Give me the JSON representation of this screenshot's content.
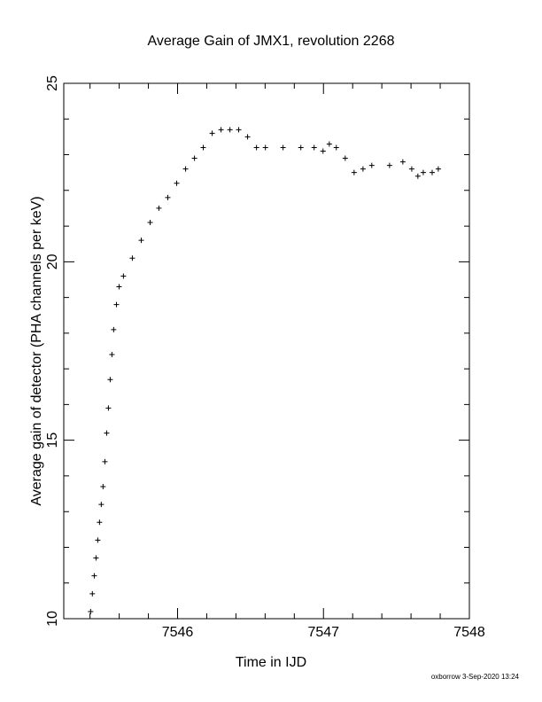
{
  "chart_data": {
    "type": "scatter",
    "title": "Average Gain of JMX1, revolution 2268",
    "xlabel": "Time in IJD",
    "ylabel": "Average gain of detector (PHA channels per keV)",
    "footer": "oxborrow 3-Sep-2020 13:24",
    "color": "#000000",
    "marker": "plus",
    "xlim": [
      7545.22,
      7548
    ],
    "ylim": [
      10,
      25
    ],
    "xticks": [
      7546,
      7547,
      7548
    ],
    "yticks": [
      10,
      15,
      20,
      25
    ],
    "xminorticks": [
      7545.4,
      7545.6,
      7545.8,
      7546.2,
      7546.4,
      7546.6,
      7546.8,
      7547.2,
      7547.4,
      7547.6,
      7547.8
    ],
    "yminorticks": [
      11,
      12,
      13,
      14,
      16,
      17,
      18,
      19,
      21,
      22,
      23,
      24
    ],
    "x": [
      7545.404,
      7545.416,
      7545.429,
      7545.441,
      7545.453,
      7545.465,
      7545.477,
      7545.489,
      7545.502,
      7545.514,
      7545.526,
      7545.538,
      7545.55,
      7545.562,
      7545.581,
      7545.599,
      7545.629,
      7545.69,
      7545.751,
      7545.812,
      7545.872,
      7545.933,
      7545.994,
      7546.055,
      7546.116,
      7546.176,
      7546.237,
      7546.298,
      7546.359,
      7546.419,
      7546.48,
      7546.541,
      7546.602,
      7546.723,
      7546.845,
      7546.936,
      7546.997,
      7547.04,
      7547.088,
      7547.149,
      7547.21,
      7547.271,
      7547.331,
      7547.453,
      7547.544,
      7547.605,
      7547.647,
      7547.684,
      7547.745,
      7547.787
    ],
    "values": [
      10.2,
      10.7,
      11.2,
      11.7,
      12.2,
      12.7,
      13.2,
      13.7,
      14.4,
      15.2,
      15.9,
      16.7,
      17.4,
      18.1,
      18.8,
      19.3,
      19.6,
      20.1,
      20.6,
      21.1,
      21.5,
      21.8,
      22.2,
      22.6,
      22.9,
      23.2,
      23.6,
      23.7,
      23.7,
      23.7,
      23.5,
      23.2,
      23.2,
      23.2,
      23.2,
      23.2,
      23.1,
      23.3,
      23.2,
      22.9,
      22.5,
      22.6,
      22.7,
      22.7,
      22.8,
      22.6,
      22.4,
      22.5,
      22.5,
      22.6
    ]
  }
}
